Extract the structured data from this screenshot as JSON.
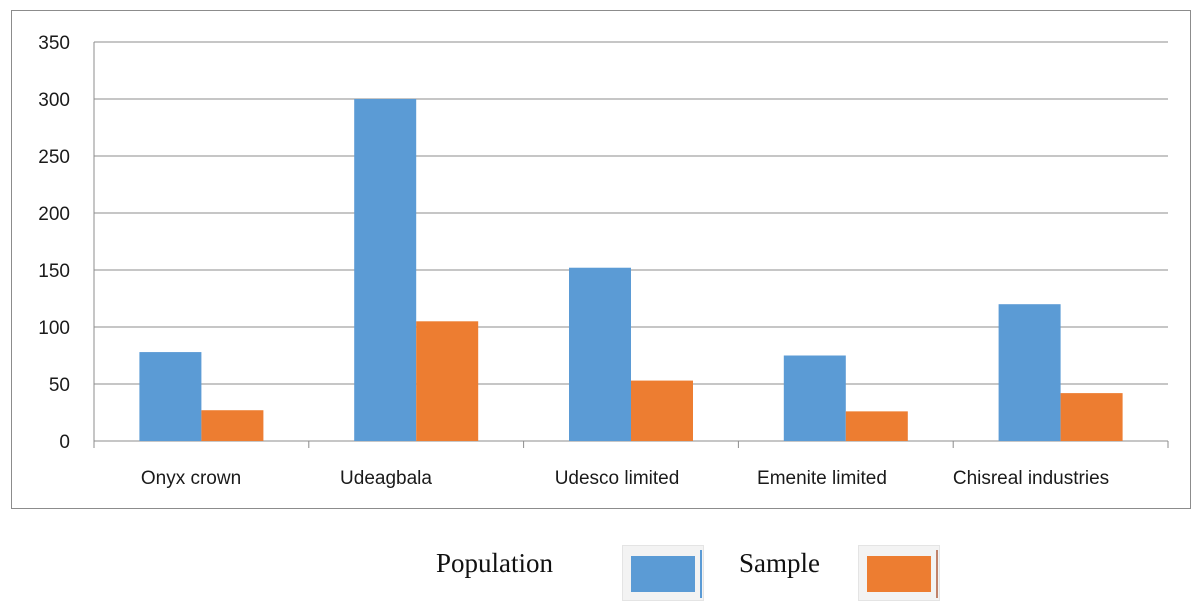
{
  "chart_data": {
    "type": "bar",
    "categories": [
      "Onyx crown",
      "Udeagbala",
      "Udesco limited",
      "Emenite limited",
      "Chisreal industries"
    ],
    "series": [
      {
        "name": "Population",
        "color": "#5b9bd5",
        "values": [
          78,
          300,
          152,
          75,
          120
        ]
      },
      {
        "name": "Sample",
        "color": "#ed7d31",
        "values": [
          27,
          105,
          53,
          26,
          42
        ]
      }
    ],
    "ylim": [
      0,
      350
    ],
    "yticks": [
      0,
      50,
      100,
      150,
      200,
      250,
      300,
      350
    ],
    "grid": true,
    "legend_position": "bottom",
    "title": "",
    "xlabel": "",
    "ylabel": ""
  }
}
